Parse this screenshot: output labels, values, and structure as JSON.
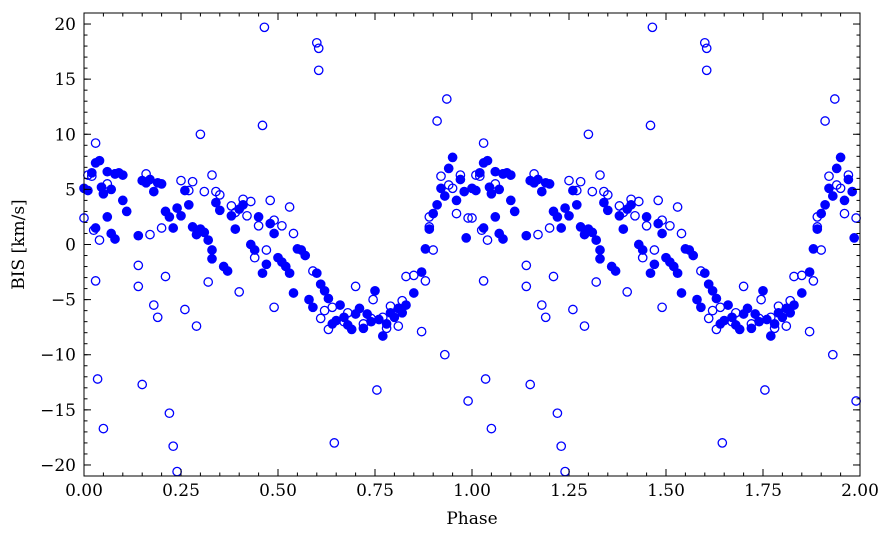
{
  "chart_data": {
    "type": "scatter",
    "title": "",
    "xlabel": "Phase",
    "ylabel": "BIS [km/s]",
    "xlim": [
      0.0,
      2.0
    ],
    "ylim": [
      -21,
      21
    ],
    "x_ticks": [
      0.0,
      0.25,
      0.5,
      0.75,
      1.0,
      1.25,
      1.5,
      1.75,
      2.0
    ],
    "x_tick_labels": [
      "0.00",
      "0.25",
      "0.50",
      "0.75",
      "1.00",
      "1.25",
      "1.50",
      "1.75",
      "2.00"
    ],
    "y_ticks": [
      -20,
      -15,
      -10,
      -5,
      0,
      5,
      10,
      15,
      20
    ],
    "y_tick_labels": [
      "−20",
      "−15",
      "−10",
      "−5",
      "0",
      "5",
      "10",
      "15",
      "20"
    ],
    "grid": false,
    "marker_color": "#0000ff",
    "phase_repeat": 1.0,
    "series": [
      {
        "marker": "filled-circle",
        "values": [
          [
            0.0,
            5.1
          ],
          [
            0.01,
            4.9
          ],
          [
            0.02,
            6.5
          ],
          [
            0.03,
            7.4
          ],
          [
            0.04,
            7.6
          ],
          [
            0.045,
            5.2
          ],
          [
            0.05,
            4.6
          ],
          [
            0.06,
            6.6
          ],
          [
            0.07,
            5.0
          ],
          [
            0.08,
            6.4
          ],
          [
            0.09,
            6.5
          ],
          [
            0.1,
            6.3
          ],
          [
            0.11,
            3.0
          ],
          [
            0.1,
            4.0
          ],
          [
            0.06,
            2.5
          ],
          [
            0.07,
            1.0
          ],
          [
            0.08,
            0.5
          ],
          [
            0.03,
            1.5
          ],
          [
            0.14,
            0.8
          ],
          [
            0.15,
            5.8
          ],
          [
            0.16,
            5.6
          ],
          [
            0.17,
            5.9
          ],
          [
            0.18,
            4.8
          ],
          [
            0.19,
            5.6
          ],
          [
            0.2,
            5.5
          ],
          [
            0.21,
            3.0
          ],
          [
            0.22,
            2.5
          ],
          [
            0.23,
            1.5
          ],
          [
            0.24,
            3.3
          ],
          [
            0.25,
            2.6
          ],
          [
            0.26,
            4.9
          ],
          [
            0.27,
            3.6
          ],
          [
            0.28,
            1.6
          ],
          [
            0.29,
            0.9
          ],
          [
            0.3,
            1.4
          ],
          [
            0.31,
            1.1
          ],
          [
            0.32,
            0.4
          ],
          [
            0.33,
            -0.5
          ],
          [
            0.33,
            -1.3
          ],
          [
            0.34,
            3.8
          ],
          [
            0.35,
            3.1
          ],
          [
            0.36,
            -2.0
          ],
          [
            0.37,
            -2.4
          ],
          [
            0.38,
            2.6
          ],
          [
            0.39,
            1.4
          ],
          [
            0.4,
            3.2
          ],
          [
            0.41,
            3.6
          ],
          [
            0.43,
            0.0
          ],
          [
            0.44,
            -0.5
          ],
          [
            0.45,
            2.5
          ],
          [
            0.46,
            -2.6
          ],
          [
            0.47,
            -1.8
          ],
          [
            0.48,
            1.9
          ],
          [
            0.49,
            1.0
          ],
          [
            0.5,
            -1.2
          ],
          [
            0.51,
            -1.6
          ],
          [
            0.52,
            -2.0
          ],
          [
            0.53,
            -2.6
          ],
          [
            0.54,
            -4.4
          ],
          [
            0.55,
            -0.4
          ],
          [
            0.56,
            -0.5
          ],
          [
            0.57,
            -1.0
          ],
          [
            0.58,
            -5.0
          ],
          [
            0.59,
            -5.7
          ],
          [
            0.6,
            -2.6
          ],
          [
            0.61,
            -3.6
          ],
          [
            0.62,
            -4.2
          ],
          [
            0.63,
            -4.9
          ],
          [
            0.64,
            -7.2
          ],
          [
            0.65,
            -6.9
          ],
          [
            0.66,
            -5.5
          ],
          [
            0.67,
            -6.6
          ],
          [
            0.68,
            -7.3
          ],
          [
            0.69,
            -7.7
          ],
          [
            0.7,
            -6.3
          ],
          [
            0.71,
            -5.8
          ],
          [
            0.72,
            -7.6
          ],
          [
            0.73,
            -6.3
          ],
          [
            0.74,
            -7.0
          ],
          [
            0.75,
            -4.2
          ],
          [
            0.76,
            -6.8
          ],
          [
            0.77,
            -8.3
          ],
          [
            0.78,
            -7.2
          ],
          [
            0.79,
            -6.2
          ],
          [
            0.8,
            -6.6
          ],
          [
            0.81,
            -5.8
          ],
          [
            0.82,
            -6.2
          ],
          [
            0.83,
            -5.5
          ],
          [
            0.85,
            -4.4
          ],
          [
            0.87,
            -2.5
          ],
          [
            0.88,
            -0.4
          ],
          [
            0.89,
            1.4
          ],
          [
            0.9,
            2.8
          ],
          [
            0.91,
            3.6
          ],
          [
            0.92,
            5.1
          ],
          [
            0.93,
            4.4
          ],
          [
            0.94,
            6.9
          ],
          [
            0.95,
            7.9
          ],
          [
            0.96,
            4.0
          ],
          [
            0.97,
            5.9
          ],
          [
            0.98,
            4.8
          ],
          [
            0.985,
            0.6
          ]
        ]
      },
      {
        "marker": "open-circle",
        "values": [
          [
            0.0,
            2.4
          ],
          [
            0.01,
            6.3
          ],
          [
            0.02,
            6.2
          ],
          [
            0.025,
            1.3
          ],
          [
            0.03,
            -3.3
          ],
          [
            0.03,
            9.2
          ],
          [
            0.035,
            -12.2
          ],
          [
            0.04,
            0.4
          ],
          [
            0.05,
            -16.7
          ],
          [
            0.06,
            5.5
          ],
          [
            0.08,
            6.4
          ],
          [
            0.14,
            -1.9
          ],
          [
            0.15,
            -12.7
          ],
          [
            0.14,
            -3.8
          ],
          [
            0.16,
            6.4
          ],
          [
            0.17,
            0.9
          ],
          [
            0.18,
            -5.5
          ],
          [
            0.19,
            -6.6
          ],
          [
            0.2,
            1.5
          ],
          [
            0.21,
            -2.9
          ],
          [
            0.22,
            -15.3
          ],
          [
            0.23,
            -18.3
          ],
          [
            0.24,
            -20.6
          ],
          [
            0.25,
            5.8
          ],
          [
            0.26,
            -5.9
          ],
          [
            0.27,
            4.9
          ],
          [
            0.28,
            5.7
          ],
          [
            0.29,
            -7.4
          ],
          [
            0.3,
            10.0
          ],
          [
            0.31,
            4.8
          ],
          [
            0.32,
            -3.4
          ],
          [
            0.33,
            6.3
          ],
          [
            0.34,
            4.8
          ],
          [
            0.35,
            4.5
          ],
          [
            0.38,
            3.5
          ],
          [
            0.39,
            2.9
          ],
          [
            0.4,
            -4.3
          ],
          [
            0.41,
            4.1
          ],
          [
            0.42,
            2.6
          ],
          [
            0.43,
            3.9
          ],
          [
            0.44,
            -1.2
          ],
          [
            0.45,
            1.7
          ],
          [
            0.46,
            10.8
          ],
          [
            0.465,
            19.7
          ],
          [
            0.47,
            -0.5
          ],
          [
            0.48,
            4.0
          ],
          [
            0.49,
            2.2
          ],
          [
            0.49,
            -5.7
          ],
          [
            0.51,
            1.7
          ],
          [
            0.53,
            3.4
          ],
          [
            0.54,
            1.0
          ],
          [
            0.59,
            -2.4
          ],
          [
            0.6,
            18.3
          ],
          [
            0.605,
            17.8
          ],
          [
            0.605,
            15.8
          ],
          [
            0.61,
            -6.7
          ],
          [
            0.62,
            -6.0
          ],
          [
            0.63,
            -7.7
          ],
          [
            0.64,
            -5.7
          ],
          [
            0.645,
            -18.0
          ],
          [
            0.67,
            -7.0
          ],
          [
            0.68,
            -6.2
          ],
          [
            0.7,
            -3.8
          ],
          [
            0.72,
            -7.2
          ],
          [
            0.74,
            -6.7
          ],
          [
            0.745,
            -5.0
          ],
          [
            0.755,
            -13.2
          ],
          [
            0.77,
            -6.6
          ],
          [
            0.78,
            -7.6
          ],
          [
            0.79,
            -5.6
          ],
          [
            0.81,
            -7.4
          ],
          [
            0.82,
            -5.1
          ],
          [
            0.83,
            -2.9
          ],
          [
            0.85,
            -2.8
          ],
          [
            0.87,
            -7.9
          ],
          [
            0.88,
            -3.3
          ],
          [
            0.89,
            2.5
          ],
          [
            0.89,
            1.6
          ],
          [
            0.9,
            -0.5
          ],
          [
            0.91,
            11.2
          ],
          [
            0.92,
            6.2
          ],
          [
            0.93,
            -10.0
          ],
          [
            0.935,
            13.2
          ],
          [
            0.94,
            5.4
          ],
          [
            0.95,
            5.1
          ],
          [
            0.96,
            2.8
          ],
          [
            0.97,
            6.3
          ],
          [
            0.99,
            2.4
          ],
          [
            0.99,
            -14.2
          ]
        ]
      }
    ]
  }
}
